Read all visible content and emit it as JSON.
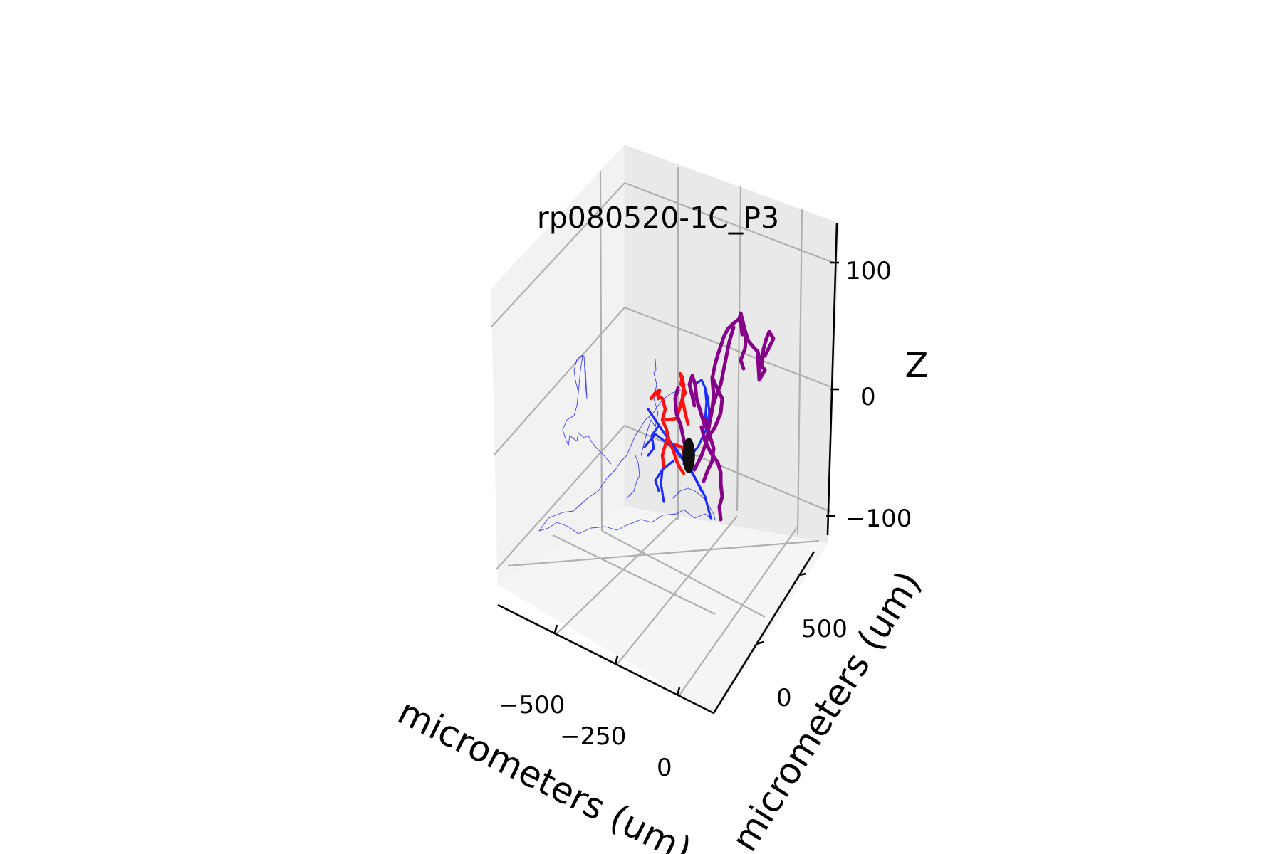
{
  "chart_data": {
    "type": "line",
    "projection": "3d",
    "title": "rp080520-1C_P3",
    "xlabel": "micrometers (um)",
    "ylabel": "micrometers (um)",
    "zlabel": "Z",
    "x_ticks": [
      "−500",
      "−250",
      "0"
    ],
    "y_ticks": [
      "0",
      "500"
    ],
    "z_ticks": [
      "−100",
      "0",
      "100"
    ],
    "grid": true,
    "colors": {
      "red": "#ff0000",
      "blue": "#0000ff",
      "purple": "#800080",
      "soma": "#000000"
    }
  }
}
